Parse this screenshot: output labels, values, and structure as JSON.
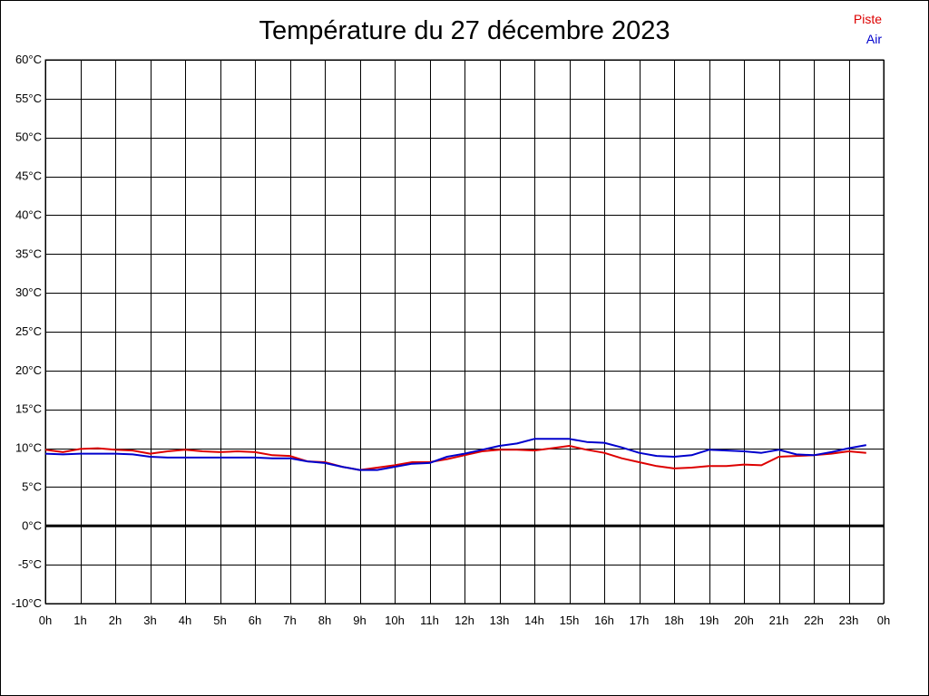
{
  "chart_data": {
    "type": "line",
    "title": "Température du 27 décembre 2023",
    "xlabel": "",
    "ylabel": "",
    "x_ticks": [
      "0h",
      "1h",
      "2h",
      "3h",
      "4h",
      "5h",
      "6h",
      "7h",
      "8h",
      "9h",
      "10h",
      "11h",
      "12h",
      "13h",
      "14h",
      "15h",
      "16h",
      "17h",
      "18h",
      "19h",
      "20h",
      "21h",
      "22h",
      "23h",
      "0h"
    ],
    "y_ticks": [
      "-10°C",
      "-5°C",
      "0°C",
      "5°C",
      "10°C",
      "15°C",
      "20°C",
      "25°C",
      "30°C",
      "35°C",
      "40°C",
      "45°C",
      "50°C",
      "55°C",
      "60°C"
    ],
    "xlim": [
      0,
      24
    ],
    "ylim": [
      -10,
      60
    ],
    "grid": true,
    "legend": "top-right",
    "zero_line": true,
    "x": [
      0,
      0.5,
      1,
      1.5,
      2,
      2.5,
      3,
      3.5,
      4,
      4.5,
      5,
      5.5,
      6,
      6.5,
      7,
      7.5,
      8,
      8.5,
      9,
      9.5,
      10,
      10.5,
      11,
      11.5,
      12,
      12.5,
      13,
      13.5,
      14,
      14.5,
      15,
      15.5,
      16,
      16.5,
      17,
      17.5,
      18,
      18.5,
      19,
      19.5,
      20,
      20.5,
      21,
      21.5,
      22,
      22.5,
      23,
      23.5
    ],
    "series": [
      {
        "name": "Piste",
        "color": "#dd0000",
        "values": [
          9.8,
          9.5,
          9.9,
          10.0,
          9.8,
          9.7,
          9.3,
          9.6,
          9.8,
          9.6,
          9.5,
          9.6,
          9.5,
          9.1,
          9.0,
          8.3,
          8.2,
          7.6,
          7.2,
          7.5,
          7.8,
          8.2,
          8.2,
          8.6,
          9.1,
          9.6,
          9.8,
          9.8,
          9.7,
          10.0,
          10.3,
          9.8,
          9.4,
          8.7,
          8.2,
          7.7,
          7.4,
          7.5,
          7.7,
          7.7,
          7.9,
          7.8,
          8.9,
          9.0,
          9.1,
          9.3,
          9.6,
          9.4
        ]
      },
      {
        "name": "Air",
        "color": "#0000cc",
        "values": [
          9.3,
          9.2,
          9.3,
          9.3,
          9.3,
          9.2,
          8.9,
          8.8,
          8.8,
          8.8,
          8.8,
          8.8,
          8.8,
          8.7,
          8.7,
          8.3,
          8.1,
          7.6,
          7.2,
          7.2,
          7.6,
          8.0,
          8.1,
          8.9,
          9.3,
          9.8,
          10.3,
          10.6,
          11.2,
          11.2,
          11.2,
          10.8,
          10.7,
          10.1,
          9.4,
          9.0,
          8.9,
          9.1,
          9.8,
          9.7,
          9.6,
          9.4,
          9.8,
          9.2,
          9.1,
          9.5,
          10.0,
          10.4
        ]
      }
    ]
  }
}
